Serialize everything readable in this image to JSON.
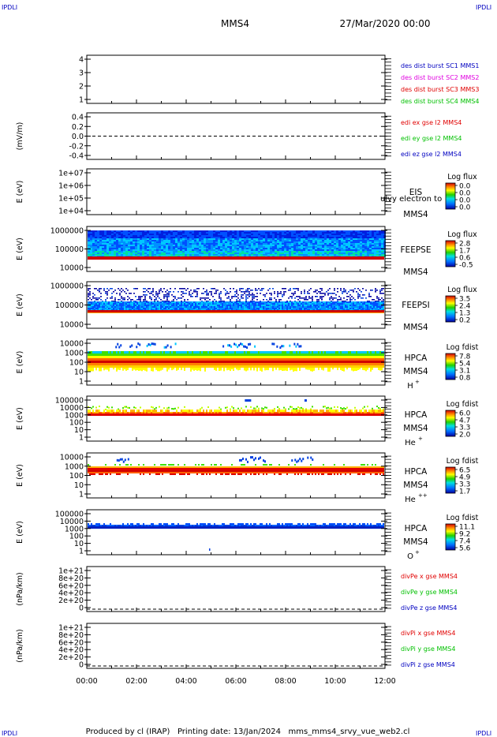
{
  "header": {
    "corner_tl": "IPDLI",
    "corner_tr": "IPDLI",
    "corner_bl": "IPDLI",
    "corner_br": "IPDLI",
    "spacecraft": "MMS4",
    "date": "27/Mar/2020 00:00"
  },
  "footer": {
    "text": "Produced by cl (IRAP)   Printing date: 13/Jan/2024   mms_mms4_srvy_vue_web2.cl"
  },
  "colors": {
    "frame": "#000000",
    "red": "#e00000",
    "green": "#00c000",
    "blue": "#0000c0",
    "magenta": "#e000e0"
  },
  "chart_data": {
    "x_ticks": [
      "00:00",
      "02:00",
      "04:00",
      "06:00",
      "08:00",
      "10:00",
      "12:00"
    ],
    "x_range_hours": [
      0,
      12
    ],
    "panels": [
      {
        "id": "des-dist",
        "type": "line",
        "yticks": [
          "4",
          "3",
          "2",
          "1"
        ],
        "ylabel": "",
        "legend": [
          {
            "text": "des dist burst SC1 MMS1",
            "color": "#0000c0"
          },
          {
            "text": "des dist burst SC2 MMS2",
            "color": "#e000e0"
          },
          {
            "text": "des dist burst SC3 MMS3",
            "color": "#e00000"
          },
          {
            "text": "des dist burst SC4 MMS4",
            "color": "#00c000"
          }
        ]
      },
      {
        "id": "edi",
        "type": "line",
        "yticks": [
          "0.4",
          "0.2",
          "0.0",
          "-0.2",
          "-0.4"
        ],
        "ylabel": "(mV/m)",
        "zero_line": true,
        "legend": [
          {
            "text": "edi ex gse l2 MMS4",
            "color": "#e00000"
          },
          {
            "text": "edi ey gse l2 MMS4",
            "color": "#00c000"
          },
          {
            "text": "edi ez gse l2 MMS4",
            "color": "#0000c0"
          }
        ]
      },
      {
        "id": "eis",
        "type": "heatmap",
        "yticks": [
          "1e+07",
          "1e+06",
          "1e+05",
          "1e+04"
        ],
        "ylabel": "E (eV)",
        "instrument": "EIS",
        "sc": "MMS4",
        "overlay": "ulvy electron to",
        "cbar_title": "Log flux",
        "cbar_ticks": [
          "0.0",
          "0.0",
          "0.0",
          "0.0"
        ]
      },
      {
        "id": "feepse",
        "type": "heatmap",
        "yticks": [
          "1000000",
          "100000",
          "10000"
        ],
        "ylabel": "E (eV)",
        "instrument": "FEEPSE",
        "sc": "MMS4",
        "cbar_title": "Log flux",
        "cbar_ticks": [
          "2.8",
          "1.7",
          "0.6",
          "-0.5"
        ]
      },
      {
        "id": "feepsi",
        "type": "heatmap",
        "yticks": [
          "1000000",
          "100000",
          "10000"
        ],
        "ylabel": "E (eV)",
        "instrument": "FEEPSI",
        "sc": "MMS4",
        "cbar_title": "Log flux",
        "cbar_ticks": [
          "3.5",
          "2.4",
          "1.3",
          "0.2"
        ]
      },
      {
        "id": "hpca-h",
        "type": "heatmap",
        "yticks": [
          "10000",
          "1000",
          "100",
          "10",
          "1"
        ],
        "ylabel": "E (eV)",
        "instrument": "HPCA",
        "sc": "MMS4",
        "species": "H",
        "species_sup": "+",
        "cbar_title": "Log fdist",
        "cbar_ticks": [
          "7.8",
          "5.4",
          "3.1",
          "0.8"
        ]
      },
      {
        "id": "hpca-he",
        "type": "heatmap",
        "yticks": [
          "100000",
          "10000",
          "1000",
          "100",
          "10",
          "1"
        ],
        "ylabel": "E (eV)",
        "instrument": "HPCA",
        "sc": "MMS4",
        "species": "He",
        "species_sup": "+",
        "cbar_title": "Log fdist",
        "cbar_ticks": [
          "6.0",
          "4.7",
          "3.3",
          "2.0"
        ]
      },
      {
        "id": "hpca-hepp",
        "type": "heatmap",
        "yticks": [
          "10000",
          "1000",
          "100",
          "10",
          "1"
        ],
        "ylabel": "E (eV)",
        "instrument": "HPCA",
        "sc": "MMS4",
        "species": "He",
        "species_sup": "++",
        "cbar_title": "Log fdist",
        "cbar_ticks": [
          "6.5",
          "4.9",
          "3.3",
          "1.7"
        ]
      },
      {
        "id": "hpca-o",
        "type": "heatmap",
        "yticks": [
          "100000",
          "10000",
          "1000",
          "100",
          "10",
          "1"
        ],
        "ylabel": "E (eV)",
        "instrument": "HPCA",
        "sc": "MMS4",
        "species": "O",
        "species_sup": "+",
        "cbar_title": "Log fdist",
        "cbar_ticks": [
          "11.1",
          "9.2",
          "7.4",
          "5.6"
        ]
      },
      {
        "id": "divpe",
        "type": "line",
        "yticks": [
          "1e+21",
          "8e+20",
          "6e+20",
          "4e+20",
          "2e+20",
          "0"
        ],
        "ylabel": "(nPa/km)",
        "zero_line": true,
        "legend": [
          {
            "text": "divPe x gse MMS4",
            "color": "#e00000"
          },
          {
            "text": "divPe y gse MMS4",
            "color": "#00c000"
          },
          {
            "text": "divPe z gse MMS4",
            "color": "#0000c0"
          }
        ]
      },
      {
        "id": "divpi",
        "type": "line",
        "yticks": [
          "1e+21",
          "8e+20",
          "6e+20",
          "4e+20",
          "2e+20",
          "0"
        ],
        "ylabel": "(nPa/km)",
        "zero_line": true,
        "legend": [
          {
            "text": "divPi x gse MMS4",
            "color": "#e00000"
          },
          {
            "text": "divPi y gse MMS4",
            "color": "#00c000"
          },
          {
            "text": "divPi z gse MMS4",
            "color": "#0000c0"
          }
        ]
      }
    ]
  }
}
